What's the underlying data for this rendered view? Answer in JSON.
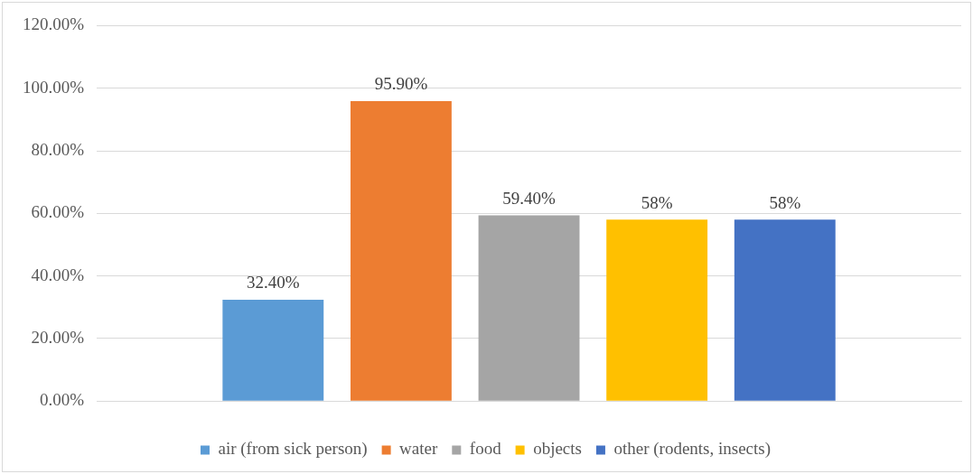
{
  "chart_data": {
    "type": "bar",
    "categories": [
      null
    ],
    "series": [
      {
        "name": "air (from sick person)",
        "color": "#5b9bd5",
        "values": [
          32.4
        ],
        "value_labels": [
          "32.40%"
        ]
      },
      {
        "name": "water",
        "color": "#ed7d31",
        "values": [
          95.9
        ],
        "value_labels": [
          "95.90%"
        ]
      },
      {
        "name": "food",
        "color": "#a5a5a5",
        "values": [
          59.4
        ],
        "value_labels": [
          "59.40%"
        ]
      },
      {
        "name": "objects",
        "color": "#ffc000",
        "values": [
          58
        ],
        "value_labels": [
          "58%"
        ]
      },
      {
        "name": "other (rodents, insects)",
        "color": "#4472c4",
        "values": [
          58
        ],
        "value_labels": [
          "58%"
        ]
      }
    ],
    "ylim": [
      0,
      120
    ],
    "yticks": [
      {
        "value": 0,
        "label": "0.00%"
      },
      {
        "value": 20,
        "label": "20.00%"
      },
      {
        "value": 40,
        "label": "40.00%"
      },
      {
        "value": 60,
        "label": "60.00%"
      },
      {
        "value": 80,
        "label": "80.00%"
      },
      {
        "value": 100,
        "label": "100.00%"
      },
      {
        "value": 120,
        "label": "120.00%"
      }
    ],
    "grid": "y",
    "legend": "bottom"
  }
}
